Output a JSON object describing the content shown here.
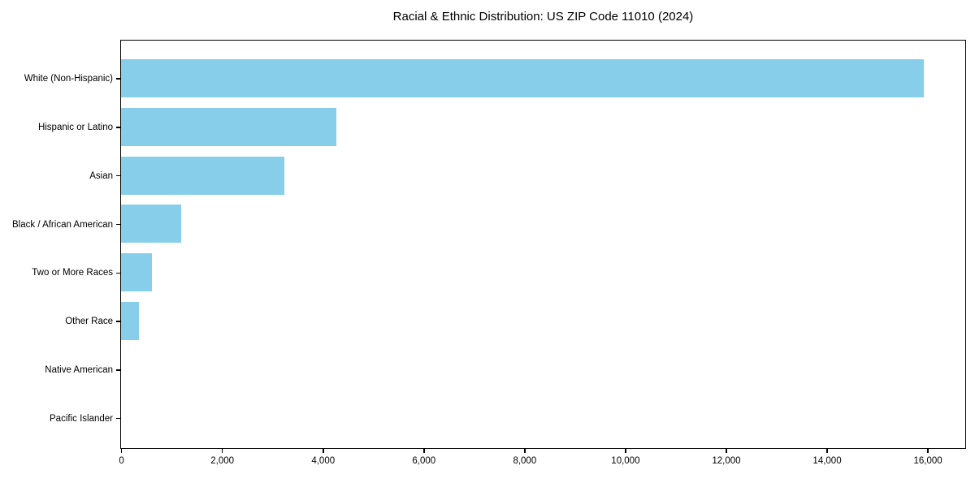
{
  "chart_data": {
    "type": "bar",
    "orientation": "horizontal",
    "title": "Racial & Ethnic Distribution: US ZIP Code 11010 (2024)",
    "categories": [
      "White (Non-Hispanic)",
      "Hispanic or Latino",
      "Asian",
      "Black / African American",
      "Two or More Races",
      "Other Race",
      "Native American",
      "Pacific Islander"
    ],
    "values": [
      15930,
      4280,
      3240,
      1200,
      620,
      350,
      0,
      0
    ],
    "xlabel": "",
    "ylabel": "",
    "xlim": [
      0,
      16750
    ],
    "xticks": [
      0,
      2000,
      4000,
      6000,
      8000,
      10000,
      12000,
      14000,
      16000
    ],
    "xtick_labels": [
      "0",
      "2,000",
      "4,000",
      "6,000",
      "8,000",
      "10,000",
      "12,000",
      "14,000",
      "16,000"
    ],
    "grid": false,
    "legend": null,
    "colors": {
      "bar": "#87CEEB",
      "axis": "#000000",
      "text": "#000000",
      "background": "#FFFFFF"
    }
  }
}
